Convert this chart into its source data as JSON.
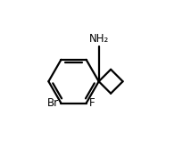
{
  "background_color": "#ffffff",
  "line_color": "#000000",
  "line_width": 1.6,
  "text_color": "#000000",
  "label_NH2": "NH₂",
  "label_Br": "Br",
  "label_F": "F",
  "figsize": [
    2.14,
    1.58
  ],
  "dpi": 100,
  "xlim": [
    -3.0,
    4.0
  ],
  "ylim": [
    -3.2,
    3.2
  ]
}
